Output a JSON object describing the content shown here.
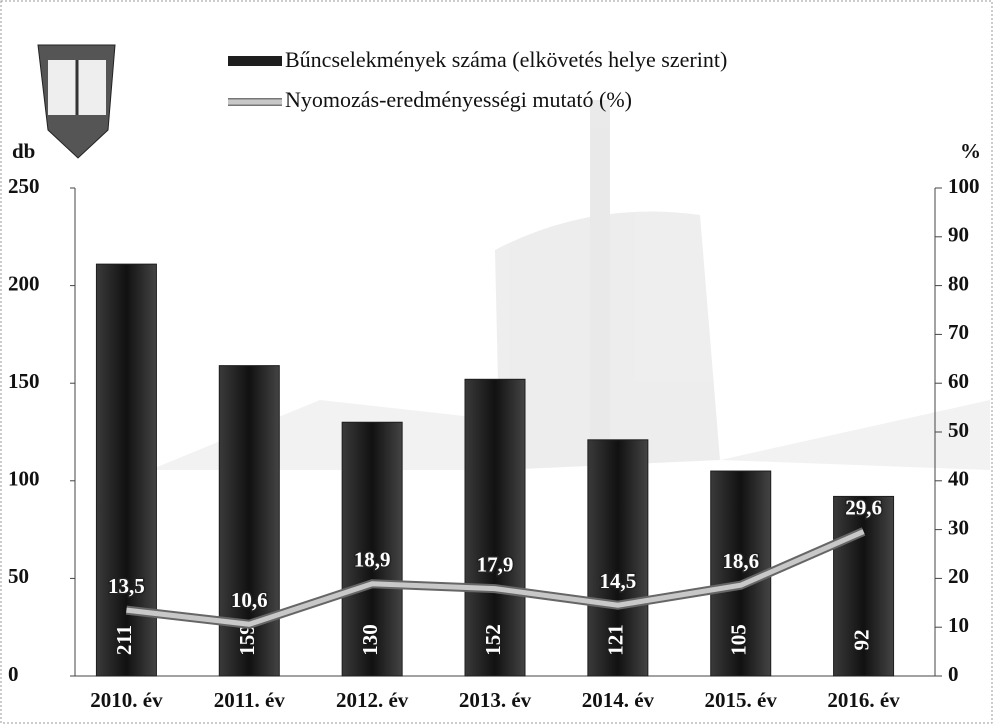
{
  "chart_data": {
    "type": "bar-line",
    "y_label": "db",
    "y2_label": "%",
    "categories": [
      "2010. év",
      "2011. év",
      "2012. év",
      "2013. év",
      "2014. év",
      "2015. év",
      "2016. év"
    ],
    "series": [
      {
        "name": "Bűncselekmények száma (elkövetés helye szerint)",
        "color": "#1e1e1e",
        "values": [
          211,
          159,
          130,
          152,
          121,
          105,
          92
        ]
      },
      {
        "name": "Nyomozás-eredményességi mutató (%)",
        "color": "#c8c8c8",
        "axis": "y2",
        "values": [
          13.5,
          10.6,
          18.9,
          17.9,
          14.5,
          18.6,
          29.6
        ],
        "value_labels": [
          "13,5",
          "10,6",
          "18,9",
          "17,9",
          "14,5",
          "18,6",
          "29,6"
        ]
      }
    ],
    "ylim": [
      0,
      250
    ],
    "yticks": [
      0,
      50,
      100,
      150,
      200,
      250
    ],
    "y2lim": [
      0,
      100
    ],
    "y2ticks": [
      0,
      10,
      20,
      30,
      40,
      50,
      60,
      70,
      80,
      90,
      100
    ]
  }
}
